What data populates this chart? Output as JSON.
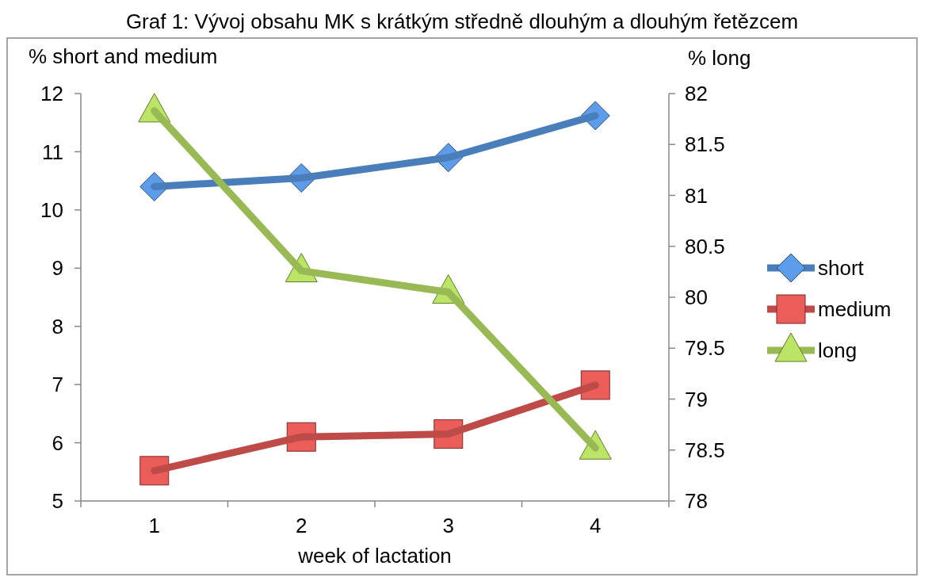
{
  "chart_data": {
    "type": "line",
    "title": "Graf 1: Vývoj obsahu MK s krátkým středně dlouhým a dlouhým řetězcem",
    "xlabel": "week of lactation",
    "ylabel": "% short and medium",
    "y2label": "% long",
    "categories": [
      "1",
      "2",
      "3",
      "4"
    ],
    "series": [
      {
        "name": "short",
        "color": "#4a7ebb",
        "marker": "diamond",
        "values": [
          10.4,
          10.55,
          10.9,
          11.62
        ]
      },
      {
        "name": "medium",
        "color": "#be4b48",
        "marker": "square",
        "values": [
          5.52,
          6.1,
          6.15,
          6.99
        ]
      },
      {
        "name": "long",
        "color": "#98b954",
        "marker": "triangle",
        "axis": "y2",
        "values": [
          81.83,
          80.26,
          80.05,
          78.52
        ]
      }
    ],
    "ylim": [
      5,
      12
    ],
    "yticks": [
      5,
      6,
      7,
      8,
      9,
      10,
      11,
      12
    ],
    "y2lim": [
      78,
      82
    ],
    "y2ticks": [
      78,
      78.5,
      79,
      79.5,
      80,
      80.5,
      81,
      81.5,
      82
    ],
    "grid": false,
    "legend": "right"
  }
}
